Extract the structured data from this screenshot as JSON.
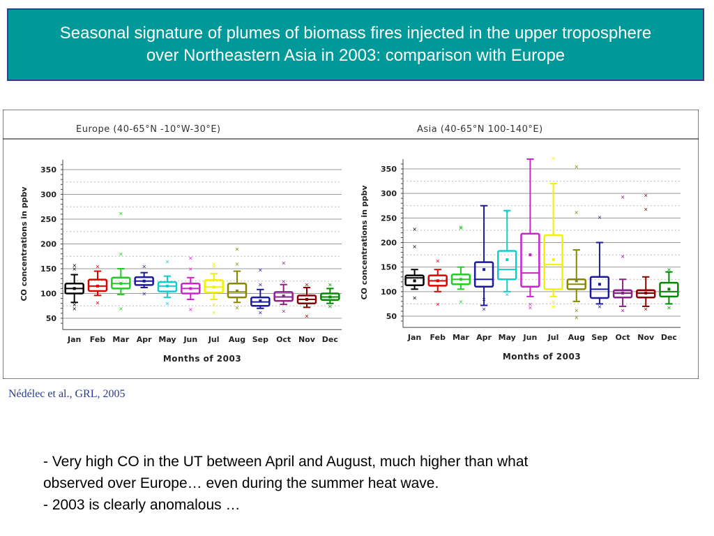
{
  "title": "Seasonal signature of plumes of biomass fires injected in the upper troposphere over Northeastern Asia in 2003: comparison with Europe",
  "citation": "Nédélec et al., GRL, 2005",
  "bullets": [
    "- Very high CO in the UT between April and August, much higher than what",
    "observed over Europe… even during the summer heat wave.",
    "- 2003 is clearly anomalous …"
  ],
  "colors": {
    "title_bg": "#009999",
    "title_border": "#3a3a8a",
    "citation": "#2b3a8f",
    "months": [
      "#000000",
      "#e00000",
      "#22cc22",
      "#1a1a9a",
      "#11cccc",
      "#cc22cc",
      "#f2f200",
      "#888800",
      "#1a1a9a",
      "#882288",
      "#880000",
      "#008800"
    ]
  },
  "chart_data": [
    {
      "type": "box",
      "title": "Europe (40-65°N  -10°W-30°E)",
      "xlabel": "Months of 2003",
      "ylabel": "CO concentrations in ppbv",
      "categories": [
        "Jan",
        "Feb",
        "Mar",
        "Apr",
        "May",
        "Jun",
        "Jul",
        "Aug",
        "Sep",
        "Oct",
        "Nov",
        "Dec"
      ],
      "yticks": [
        "50",
        "100",
        "150",
        "200",
        "250",
        "300",
        "350"
      ],
      "ylim": [
        30,
        370
      ],
      "grid": true,
      "boxes": [
        {
          "whislo": 82,
          "q1": 100,
          "med": 110,
          "q3": 120,
          "whishi": 138,
          "mean": 110
        },
        {
          "whislo": 96,
          "q1": 105,
          "med": 115,
          "q3": 128,
          "whishi": 145,
          "mean": 115
        },
        {
          "whislo": 98,
          "q1": 110,
          "med": 120,
          "q3": 132,
          "whishi": 150,
          "mean": 120
        },
        {
          "whislo": 112,
          "q1": 117,
          "med": 125,
          "q3": 133,
          "whishi": 142,
          "mean": 125
        },
        {
          "whislo": 92,
          "q1": 104,
          "med": 115,
          "q3": 123,
          "whishi": 135,
          "mean": 115
        },
        {
          "whislo": 88,
          "q1": 100,
          "med": 110,
          "q3": 120,
          "whishi": 132,
          "mean": 110
        },
        {
          "whislo": 88,
          "q1": 102,
          "med": 113,
          "q3": 127,
          "whishi": 140,
          "mean": 113
        },
        {
          "whislo": 82,
          "q1": 92,
          "med": 103,
          "q3": 120,
          "whishi": 145,
          "mean": 105
        },
        {
          "whislo": 70,
          "q1": 75,
          "med": 83,
          "q3": 92,
          "whishi": 108,
          "mean": 85
        },
        {
          "whislo": 78,
          "q1": 85,
          "med": 93,
          "q3": 103,
          "whishi": 118,
          "mean": 95
        },
        {
          "whislo": 72,
          "q1": 80,
          "med": 88,
          "q3": 96,
          "whishi": 112,
          "mean": 88
        },
        {
          "whislo": 80,
          "q1": 87,
          "med": 93,
          "q3": 100,
          "whishi": 110,
          "mean": 93
        }
      ],
      "outliers": [
        [
          70,
          78,
          150,
          157
        ],
        [
          82,
          155
        ],
        [
          70,
          180,
          262
        ],
        [
          100,
          155
        ],
        [
          80,
          165
        ],
        [
          68,
          150,
          172
        ],
        [
          62,
          78,
          155,
          160
        ],
        [
          72,
          160,
          190
        ],
        [
          62,
          118,
          148
        ],
        [
          65,
          125,
          162
        ],
        [
          55,
          118
        ],
        [
          75,
          118
        ]
      ]
    },
    {
      "type": "box",
      "title": "Asia (40-65°N  100-140°E)",
      "xlabel": "Months of 2003",
      "ylabel": "CO concentrations in ppbv",
      "categories": [
        "Jan",
        "Feb",
        "Mar",
        "Apr",
        "May",
        "Jun",
        "Jul",
        "Aug",
        "Sep",
        "Oct",
        "Nov",
        "Dec"
      ],
      "yticks": [
        "50",
        "100",
        "150",
        "200",
        "250",
        "300",
        "350"
      ],
      "ylim": [
        30,
        370
      ],
      "grid": true,
      "boxes": [
        {
          "whislo": 105,
          "q1": 113,
          "med": 128,
          "q3": 133,
          "whishi": 145,
          "mean": 122
        },
        {
          "whislo": 100,
          "q1": 112,
          "med": 122,
          "q3": 133,
          "whishi": 145,
          "mean": 122
        },
        {
          "whislo": 105,
          "q1": 115,
          "med": 125,
          "q3": 135,
          "whishi": 150,
          "mean": 125
        },
        {
          "whislo": 72,
          "q1": 110,
          "med": 125,
          "q3": 160,
          "whishi": 275,
          "mean": 145
        },
        {
          "whislo": 100,
          "q1": 125,
          "med": 145,
          "q3": 183,
          "whishi": 265,
          "mean": 165
        },
        {
          "whislo": 90,
          "q1": 110,
          "med": 138,
          "q3": 218,
          "whishi": 370,
          "mean": 175
        },
        {
          "whislo": 90,
          "q1": 105,
          "med": 155,
          "q3": 215,
          "whishi": 320,
          "mean": 165
        },
        {
          "whislo": 80,
          "q1": 105,
          "med": 115,
          "q3": 125,
          "whishi": 185,
          "mean": 122
        },
        {
          "whislo": 75,
          "q1": 87,
          "med": 105,
          "q3": 130,
          "whishi": 200,
          "mean": 115
        },
        {
          "whislo": 70,
          "q1": 88,
          "med": 97,
          "q3": 103,
          "whishi": 125,
          "mean": 97
        },
        {
          "whislo": 70,
          "q1": 88,
          "med": 97,
          "q3": 103,
          "whishi": 130,
          "mean": 97
        },
        {
          "whislo": 75,
          "q1": 90,
          "med": 100,
          "q3": 118,
          "whishi": 140,
          "mean": 105
        }
      ],
      "outliers": [
        [
          88,
          192,
          228
        ],
        [
          75,
          163
        ],
        [
          80,
          230,
          232
        ],
        [
          65,
          85
        ],
        [
          95,
          265
        ],
        [
          68,
          75
        ],
        [
          70,
          80,
          372
        ],
        [
          48,
          62,
          262,
          355
        ],
        [
          70,
          252
        ],
        [
          62,
          172,
          293
        ],
        [
          65,
          268,
          297
        ],
        [
          68,
          145
        ]
      ]
    }
  ]
}
